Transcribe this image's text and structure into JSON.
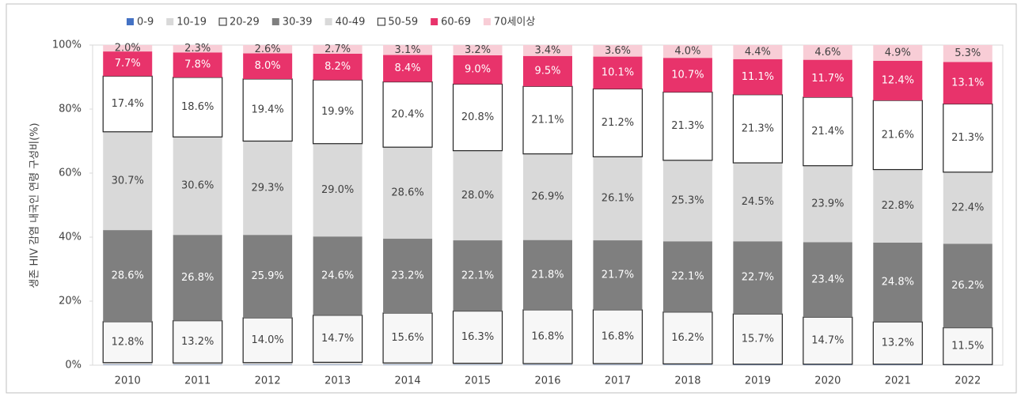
{
  "chart_data": {
    "type": "stacked_bar",
    "ylabel": "생존 HIV 감염 내국인 연령 구성비(%)",
    "categories": [
      "2010",
      "2011",
      "2012",
      "2013",
      "2014",
      "2015",
      "2016",
      "2017",
      "2018",
      "2019",
      "2020",
      "2021",
      "2022"
    ],
    "ylim": [
      0,
      100
    ],
    "yticks": [
      {
        "value": 0,
        "label": "0%"
      },
      {
        "value": 20,
        "label": "20%"
      },
      {
        "value": 40,
        "label": "40%"
      },
      {
        "value": 60,
        "label": "60%"
      },
      {
        "value": 80,
        "label": "80%"
      },
      {
        "value": 100,
        "label": "100%"
      }
    ],
    "grid": false,
    "legend": "top",
    "series": [
      {
        "name": "0-9",
        "color": "#4472c4",
        "values": [
          0.1,
          0.1,
          0.1,
          0.1,
          0.1,
          0.1,
          0.1,
          0.1,
          0.1,
          0.1,
          0.1,
          0.1,
          0.1
        ]
      },
      {
        "name": "10-19",
        "color": "#d9d9d9",
        "values": [
          0.7,
          0.6,
          0.7,
          0.8,
          0.6,
          0.5,
          0.4,
          0.4,
          0.3,
          0.2,
          0.2,
          0.2,
          0.1
        ]
      },
      {
        "name": "20-29",
        "color": "#f7f7f7",
        "edgecolor": "#222222",
        "values": [
          12.8,
          13.2,
          14.0,
          14.7,
          15.6,
          16.3,
          16.8,
          16.8,
          16.2,
          15.7,
          14.7,
          13.2,
          11.5
        ],
        "value_labels": [
          "12.8%",
          "13.2%",
          "14.0%",
          "14.7%",
          "15.6%",
          "16.3%",
          "16.8%",
          "16.8%",
          "16.2%",
          "15.7%",
          "14.7%",
          "13.2%",
          "11.5%"
        ]
      },
      {
        "name": "30-39",
        "color": "#7f7f7f",
        "values": [
          28.6,
          26.8,
          25.9,
          24.6,
          23.2,
          22.1,
          21.8,
          21.7,
          22.1,
          22.7,
          23.4,
          24.8,
          26.2
        ],
        "value_labels": [
          "28.6%",
          "26.8%",
          "25.9%",
          "24.6%",
          "23.2%",
          "22.1%",
          "21.8%",
          "21.7%",
          "22.1%",
          "22.7%",
          "23.4%",
          "24.8%",
          "26.2%"
        ]
      },
      {
        "name": "40-49",
        "color": "#d9d9d9",
        "values": [
          30.7,
          30.6,
          29.3,
          29.0,
          28.6,
          28.0,
          26.9,
          26.1,
          25.3,
          24.5,
          23.9,
          22.8,
          22.4
        ],
        "value_labels": [
          "30.7%",
          "30.6%",
          "29.3%",
          "29.0%",
          "28.6%",
          "28.0%",
          "26.9%",
          "26.1%",
          "25.3%",
          "24.5%",
          "23.9%",
          "22.8%",
          "22.4%"
        ]
      },
      {
        "name": "50-59",
        "color": "#ffffff",
        "edgecolor": "#222222",
        "values": [
          17.4,
          18.6,
          19.4,
          19.9,
          20.4,
          20.8,
          21.1,
          21.2,
          21.3,
          21.3,
          21.4,
          21.6,
          21.3
        ],
        "value_labels": [
          "17.4%",
          "18.6%",
          "19.4%",
          "19.9%",
          "20.4%",
          "20.8%",
          "21.1%",
          "21.2%",
          "21.3%",
          "21.3%",
          "21.4%",
          "21.6%",
          "21.3%"
        ]
      },
      {
        "name": "60-69",
        "color": "#e8336b",
        "values": [
          7.7,
          7.8,
          8.0,
          8.2,
          8.4,
          9.0,
          9.5,
          10.1,
          10.7,
          11.1,
          11.7,
          12.4,
          13.1
        ],
        "value_labels": [
          "7.7%",
          "7.8%",
          "8.0%",
          "8.2%",
          "8.4%",
          "9.0%",
          "9.5%",
          "10.1%",
          "10.7%",
          "11.1%",
          "11.7%",
          "12.4%",
          "13.1%"
        ]
      },
      {
        "name": "70세이상",
        "color": "#f8cdd6",
        "values": [
          2.0,
          2.3,
          2.6,
          2.7,
          3.1,
          3.2,
          3.4,
          3.6,
          4.0,
          4.4,
          4.6,
          4.9,
          5.3
        ],
        "value_labels": [
          "2.0%",
          "2.3%",
          "2.6%",
          "2.7%",
          "3.1%",
          "3.2%",
          "3.4%",
          "3.6%",
          "4.0%",
          "4.4%",
          "4.6%",
          "4.9%",
          "5.3%"
        ]
      }
    ]
  }
}
